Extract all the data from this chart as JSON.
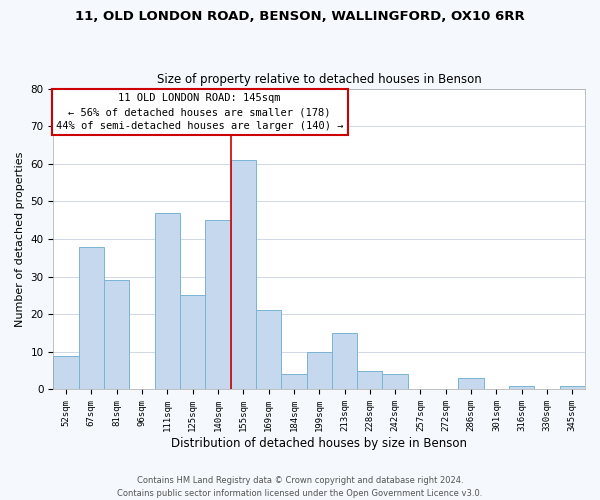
{
  "title": "11, OLD LONDON ROAD, BENSON, WALLINGFORD, OX10 6RR",
  "subtitle": "Size of property relative to detached houses in Benson",
  "xlabel": "Distribution of detached houses by size in Benson",
  "ylabel": "Number of detached properties",
  "categories": [
    "52sqm",
    "67sqm",
    "81sqm",
    "96sqm",
    "111sqm",
    "125sqm",
    "140sqm",
    "155sqm",
    "169sqm",
    "184sqm",
    "199sqm",
    "213sqm",
    "228sqm",
    "242sqm",
    "257sqm",
    "272sqm",
    "286sqm",
    "301sqm",
    "316sqm",
    "330sqm",
    "345sqm"
  ],
  "values": [
    9,
    38,
    29,
    0,
    47,
    25,
    45,
    61,
    21,
    4,
    10,
    15,
    5,
    4,
    0,
    0,
    3,
    0,
    1,
    0,
    1
  ],
  "bar_color": "#c5d8ed",
  "bar_edge_color": "#7ab4d4",
  "highlight_line_color": "#cc0000",
  "annotation_line1": "11 OLD LONDON ROAD: 145sqm",
  "annotation_line2": "← 56% of detached houses are smaller (178)",
  "annotation_line3": "44% of semi-detached houses are larger (140) →",
  "annotation_box_color": "#ffffff",
  "annotation_box_edge": "#cc0000",
  "ylim": [
    0,
    80
  ],
  "yticks": [
    0,
    10,
    20,
    30,
    40,
    50,
    60,
    70,
    80
  ],
  "footer1": "Contains HM Land Registry data © Crown copyright and database right 2024.",
  "footer2": "Contains public sector information licensed under the Open Government Licence v3.0.",
  "bg_color": "#f5f8fc",
  "plot_bg_color": "#ffffff",
  "grid_color": "#d0d8e4"
}
